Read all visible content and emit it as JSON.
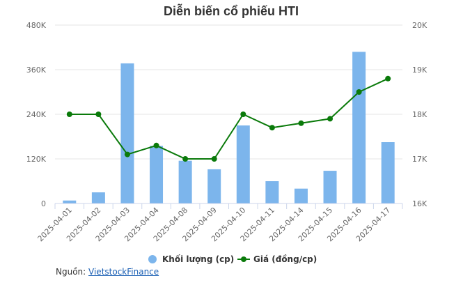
{
  "chart_data": {
    "type": "bar+line",
    "title": "Diễn biến cổ phiếu HTI",
    "categories": [
      "2025-04-01",
      "2025-04-02",
      "2025-04-03",
      "2025-04-04",
      "2025-04-08",
      "2025-04-09",
      "2025-04-10",
      "2025-04-11",
      "2025-04-14",
      "2025-04-15",
      "2025-04-16",
      "2025-04-17"
    ],
    "series": [
      {
        "name": "Khối lượng (cp)",
        "type": "bar",
        "axis": "left",
        "color": "#7cb5ec",
        "values": [
          8000,
          30000,
          377000,
          155000,
          115000,
          92000,
          210000,
          60000,
          40000,
          88000,
          408000,
          165000
        ]
      },
      {
        "name": "Giá (đồng/cp)",
        "type": "line",
        "axis": "right",
        "color": "#0a7a0a",
        "values": [
          18000,
          18000,
          17100,
          17300,
          17000,
          17000,
          18000,
          17700,
          17800,
          17900,
          18500,
          18800
        ]
      }
    ],
    "y_left": {
      "ylim": [
        0,
        480000
      ],
      "ticks": [
        0,
        120000,
        240000,
        360000,
        480000
      ],
      "tick_labels": [
        "0",
        "120K",
        "240K",
        "360K",
        "480K"
      ]
    },
    "y_right": {
      "ylim": [
        16000,
        20000
      ],
      "ticks": [
        16000,
        17000,
        18000,
        19000,
        20000
      ],
      "tick_labels": [
        "16K",
        "17K",
        "18K",
        "19K",
        "20K"
      ]
    },
    "grid": true,
    "legend_position": "bottom"
  },
  "source": {
    "label": "Nguồn:",
    "link_text": "VietstockFinance"
  }
}
